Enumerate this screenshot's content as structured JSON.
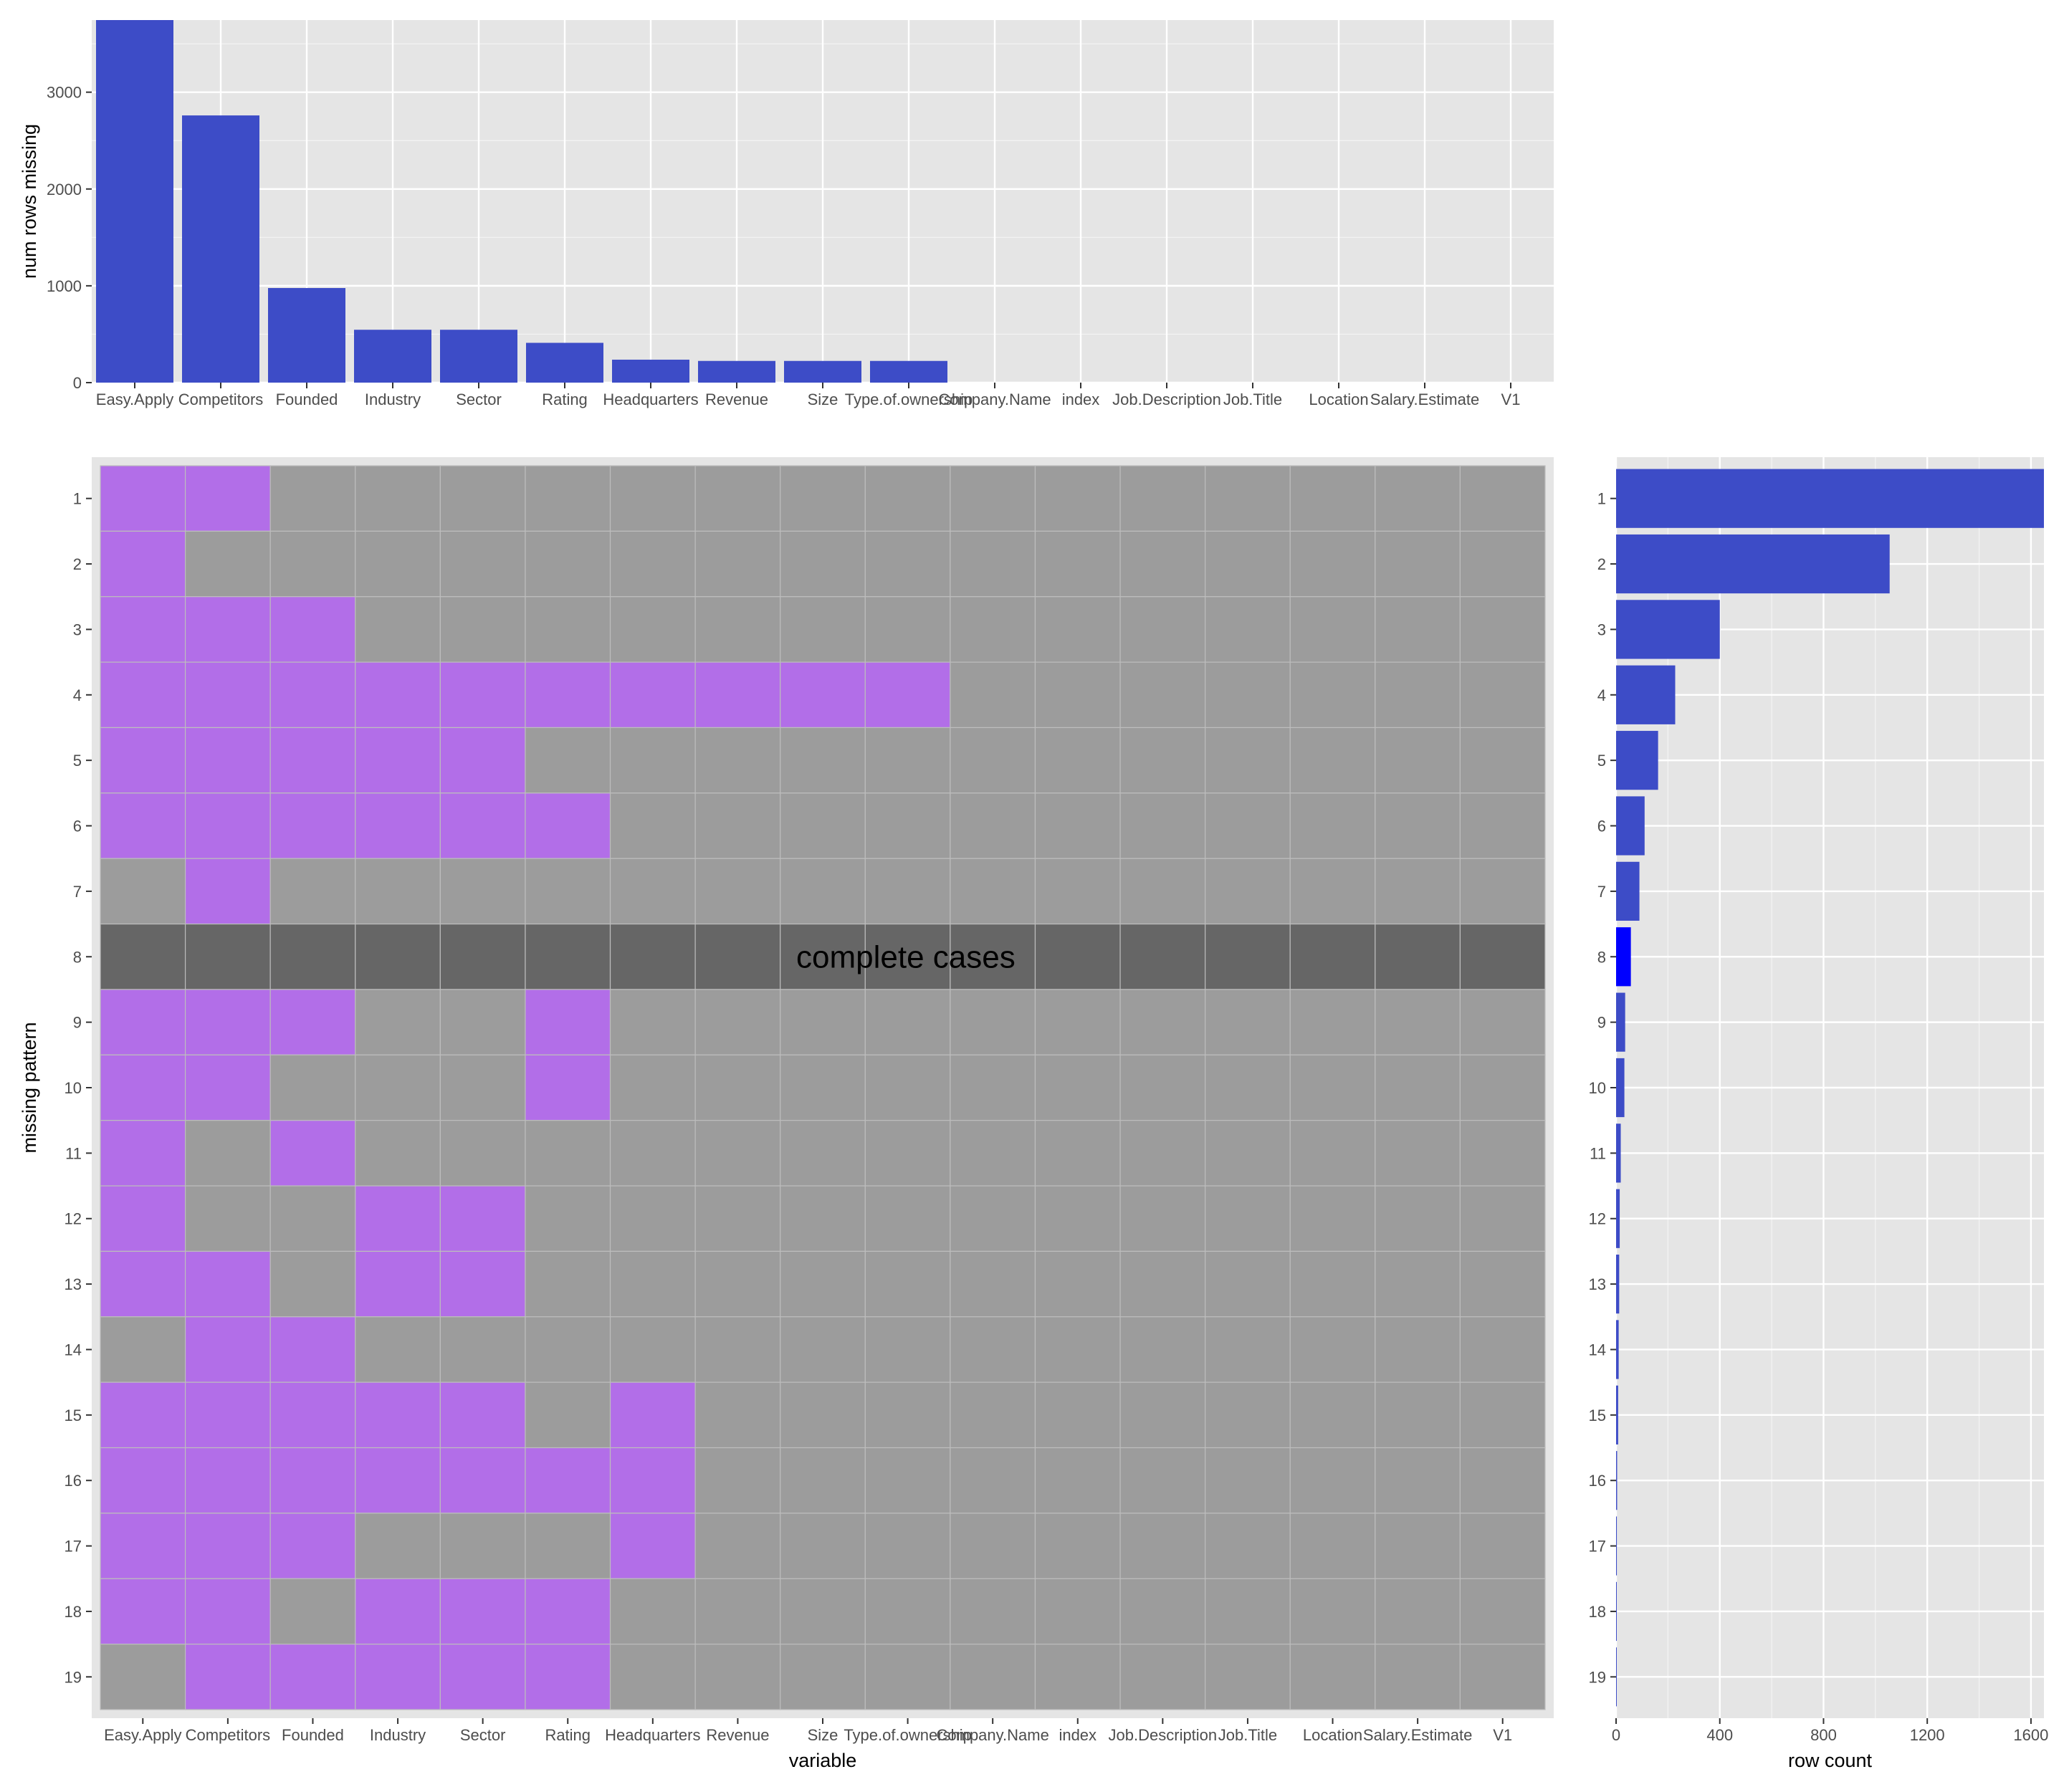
{
  "chart_data": [
    {
      "type": "bar",
      "panel": "top",
      "ylabel": "num rows missing",
      "xlabel": "",
      "categories": [
        "Easy.Apply",
        "Competitors",
        "Founded",
        "Industry",
        "Sector",
        "Rating",
        "Headquarters",
        "Revenue",
        "Size",
        "Type.of.ownership",
        "Company.Name",
        "index",
        "Job.Description",
        "Job.Title",
        "Location",
        "Salary.Estimate",
        "V1"
      ],
      "values": [
        3745,
        2760,
        977,
        546,
        546,
        411,
        237,
        224,
        224,
        224,
        0,
        0,
        0,
        0,
        0,
        0,
        0
      ],
      "ylim": [
        0,
        3745
      ],
      "yticks": [
        0,
        1000,
        2000,
        3000
      ],
      "grid": true,
      "colors": {
        "bar": "#3d4cc7",
        "panel": "#e5e5e5",
        "grid": "#ffffff"
      }
    },
    {
      "type": "heatmap",
      "panel": "main",
      "xlabel": "variable",
      "ylabel": "missing pattern",
      "columns": [
        "Easy.Apply",
        "Competitors",
        "Founded",
        "Industry",
        "Sector",
        "Rating",
        "Headquarters",
        "Revenue",
        "Size",
        "Type.of.ownership",
        "Company.Name",
        "index",
        "Job.Description",
        "Job.Title",
        "Location",
        "Salary.Estimate",
        "V1"
      ],
      "rows": [
        "1",
        "2",
        "3",
        "4",
        "5",
        "6",
        "7",
        "8",
        "9",
        "10",
        "11",
        "12",
        "13",
        "14",
        "15",
        "16",
        "17",
        "18",
        "19"
      ],
      "missing": [
        [
          1,
          1,
          0,
          0,
          0,
          0,
          0,
          0,
          0,
          0,
          0,
          0,
          0,
          0,
          0,
          0,
          0
        ],
        [
          1,
          0,
          0,
          0,
          0,
          0,
          0,
          0,
          0,
          0,
          0,
          0,
          0,
          0,
          0,
          0,
          0
        ],
        [
          1,
          1,
          1,
          0,
          0,
          0,
          0,
          0,
          0,
          0,
          0,
          0,
          0,
          0,
          0,
          0,
          0
        ],
        [
          1,
          1,
          1,
          1,
          1,
          1,
          1,
          1,
          1,
          1,
          0,
          0,
          0,
          0,
          0,
          0,
          0
        ],
        [
          1,
          1,
          1,
          1,
          1,
          0,
          0,
          0,
          0,
          0,
          0,
          0,
          0,
          0,
          0,
          0,
          0
        ],
        [
          1,
          1,
          1,
          1,
          1,
          1,
          0,
          0,
          0,
          0,
          0,
          0,
          0,
          0,
          0,
          0,
          0
        ],
        [
          0,
          1,
          0,
          0,
          0,
          0,
          0,
          0,
          0,
          0,
          0,
          0,
          0,
          0,
          0,
          0,
          0
        ],
        [
          0,
          0,
          0,
          0,
          0,
          0,
          0,
          0,
          0,
          0,
          0,
          0,
          0,
          0,
          0,
          0,
          0
        ],
        [
          1,
          1,
          1,
          0,
          0,
          1,
          0,
          0,
          0,
          0,
          0,
          0,
          0,
          0,
          0,
          0,
          0
        ],
        [
          1,
          1,
          0,
          0,
          0,
          1,
          0,
          0,
          0,
          0,
          0,
          0,
          0,
          0,
          0,
          0,
          0
        ],
        [
          1,
          0,
          1,
          0,
          0,
          0,
          0,
          0,
          0,
          0,
          0,
          0,
          0,
          0,
          0,
          0,
          0
        ],
        [
          1,
          0,
          0,
          1,
          1,
          0,
          0,
          0,
          0,
          0,
          0,
          0,
          0,
          0,
          0,
          0,
          0
        ],
        [
          1,
          1,
          0,
          1,
          1,
          0,
          0,
          0,
          0,
          0,
          0,
          0,
          0,
          0,
          0,
          0,
          0
        ],
        [
          0,
          1,
          1,
          0,
          0,
          0,
          0,
          0,
          0,
          0,
          0,
          0,
          0,
          0,
          0,
          0,
          0
        ],
        [
          1,
          1,
          1,
          1,
          1,
          0,
          1,
          0,
          0,
          0,
          0,
          0,
          0,
          0,
          0,
          0,
          0
        ],
        [
          1,
          1,
          1,
          1,
          1,
          1,
          1,
          0,
          0,
          0,
          0,
          0,
          0,
          0,
          0,
          0,
          0
        ],
        [
          1,
          1,
          1,
          0,
          0,
          0,
          1,
          0,
          0,
          0,
          0,
          0,
          0,
          0,
          0,
          0,
          0
        ],
        [
          1,
          1,
          0,
          1,
          1,
          1,
          0,
          0,
          0,
          0,
          0,
          0,
          0,
          0,
          0,
          0,
          0
        ],
        [
          0,
          1,
          1,
          1,
          1,
          1,
          0,
          0,
          0,
          0,
          0,
          0,
          0,
          0,
          0,
          0,
          0
        ]
      ],
      "complete_cases_row": "8",
      "annotation": "complete cases",
      "colors": {
        "missing": "#b26ee8",
        "present": "#9c9c9c",
        "complete": "#666666",
        "cell_border": "#bdbdbd"
      }
    },
    {
      "type": "bar",
      "panel": "right",
      "orientation": "horizontal",
      "xlabel": "row count",
      "categories": [
        "1",
        "2",
        "3",
        "4",
        "5",
        "6",
        "7",
        "8",
        "9",
        "10",
        "11",
        "12",
        "13",
        "14",
        "15",
        "16",
        "17",
        "18",
        "19"
      ],
      "values": [
        1650,
        1055,
        400,
        228,
        162,
        110,
        90,
        57,
        35,
        32,
        18,
        14,
        12,
        10,
        8,
        4,
        3,
        2,
        1
      ],
      "highlight": "8",
      "xlim": [
        0,
        1650
      ],
      "xticks": [
        0,
        400,
        800,
        1200,
        1600
      ],
      "grid": true,
      "colors": {
        "bar": "#3d4cc7",
        "highlight": "#0000ff",
        "panel": "#e5e5e5",
        "grid": "#ffffff"
      }
    }
  ]
}
